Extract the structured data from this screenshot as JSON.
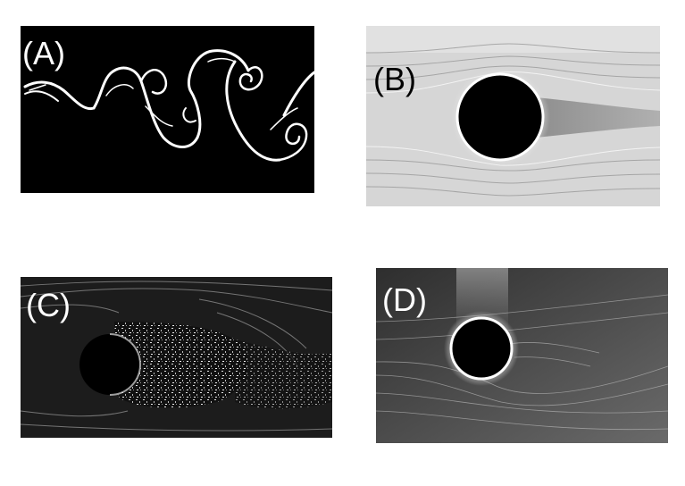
{
  "figure": {
    "panels": [
      {
        "id": "a",
        "label": "(A)"
      },
      {
        "id": "b",
        "label": "(B)"
      },
      {
        "id": "c",
        "label": "(C)"
      },
      {
        "id": "d",
        "label": "(D)"
      }
    ]
  },
  "colors": {
    "background": "#ffffff",
    "panel_a_bg": "#000000",
    "panel_b_bg": "#d8d8d8",
    "panel_c_bg": "#1a1a1a",
    "panel_d_bg": "#3a3a3a",
    "streak": "#ffffff",
    "cylinder": "#000000"
  }
}
